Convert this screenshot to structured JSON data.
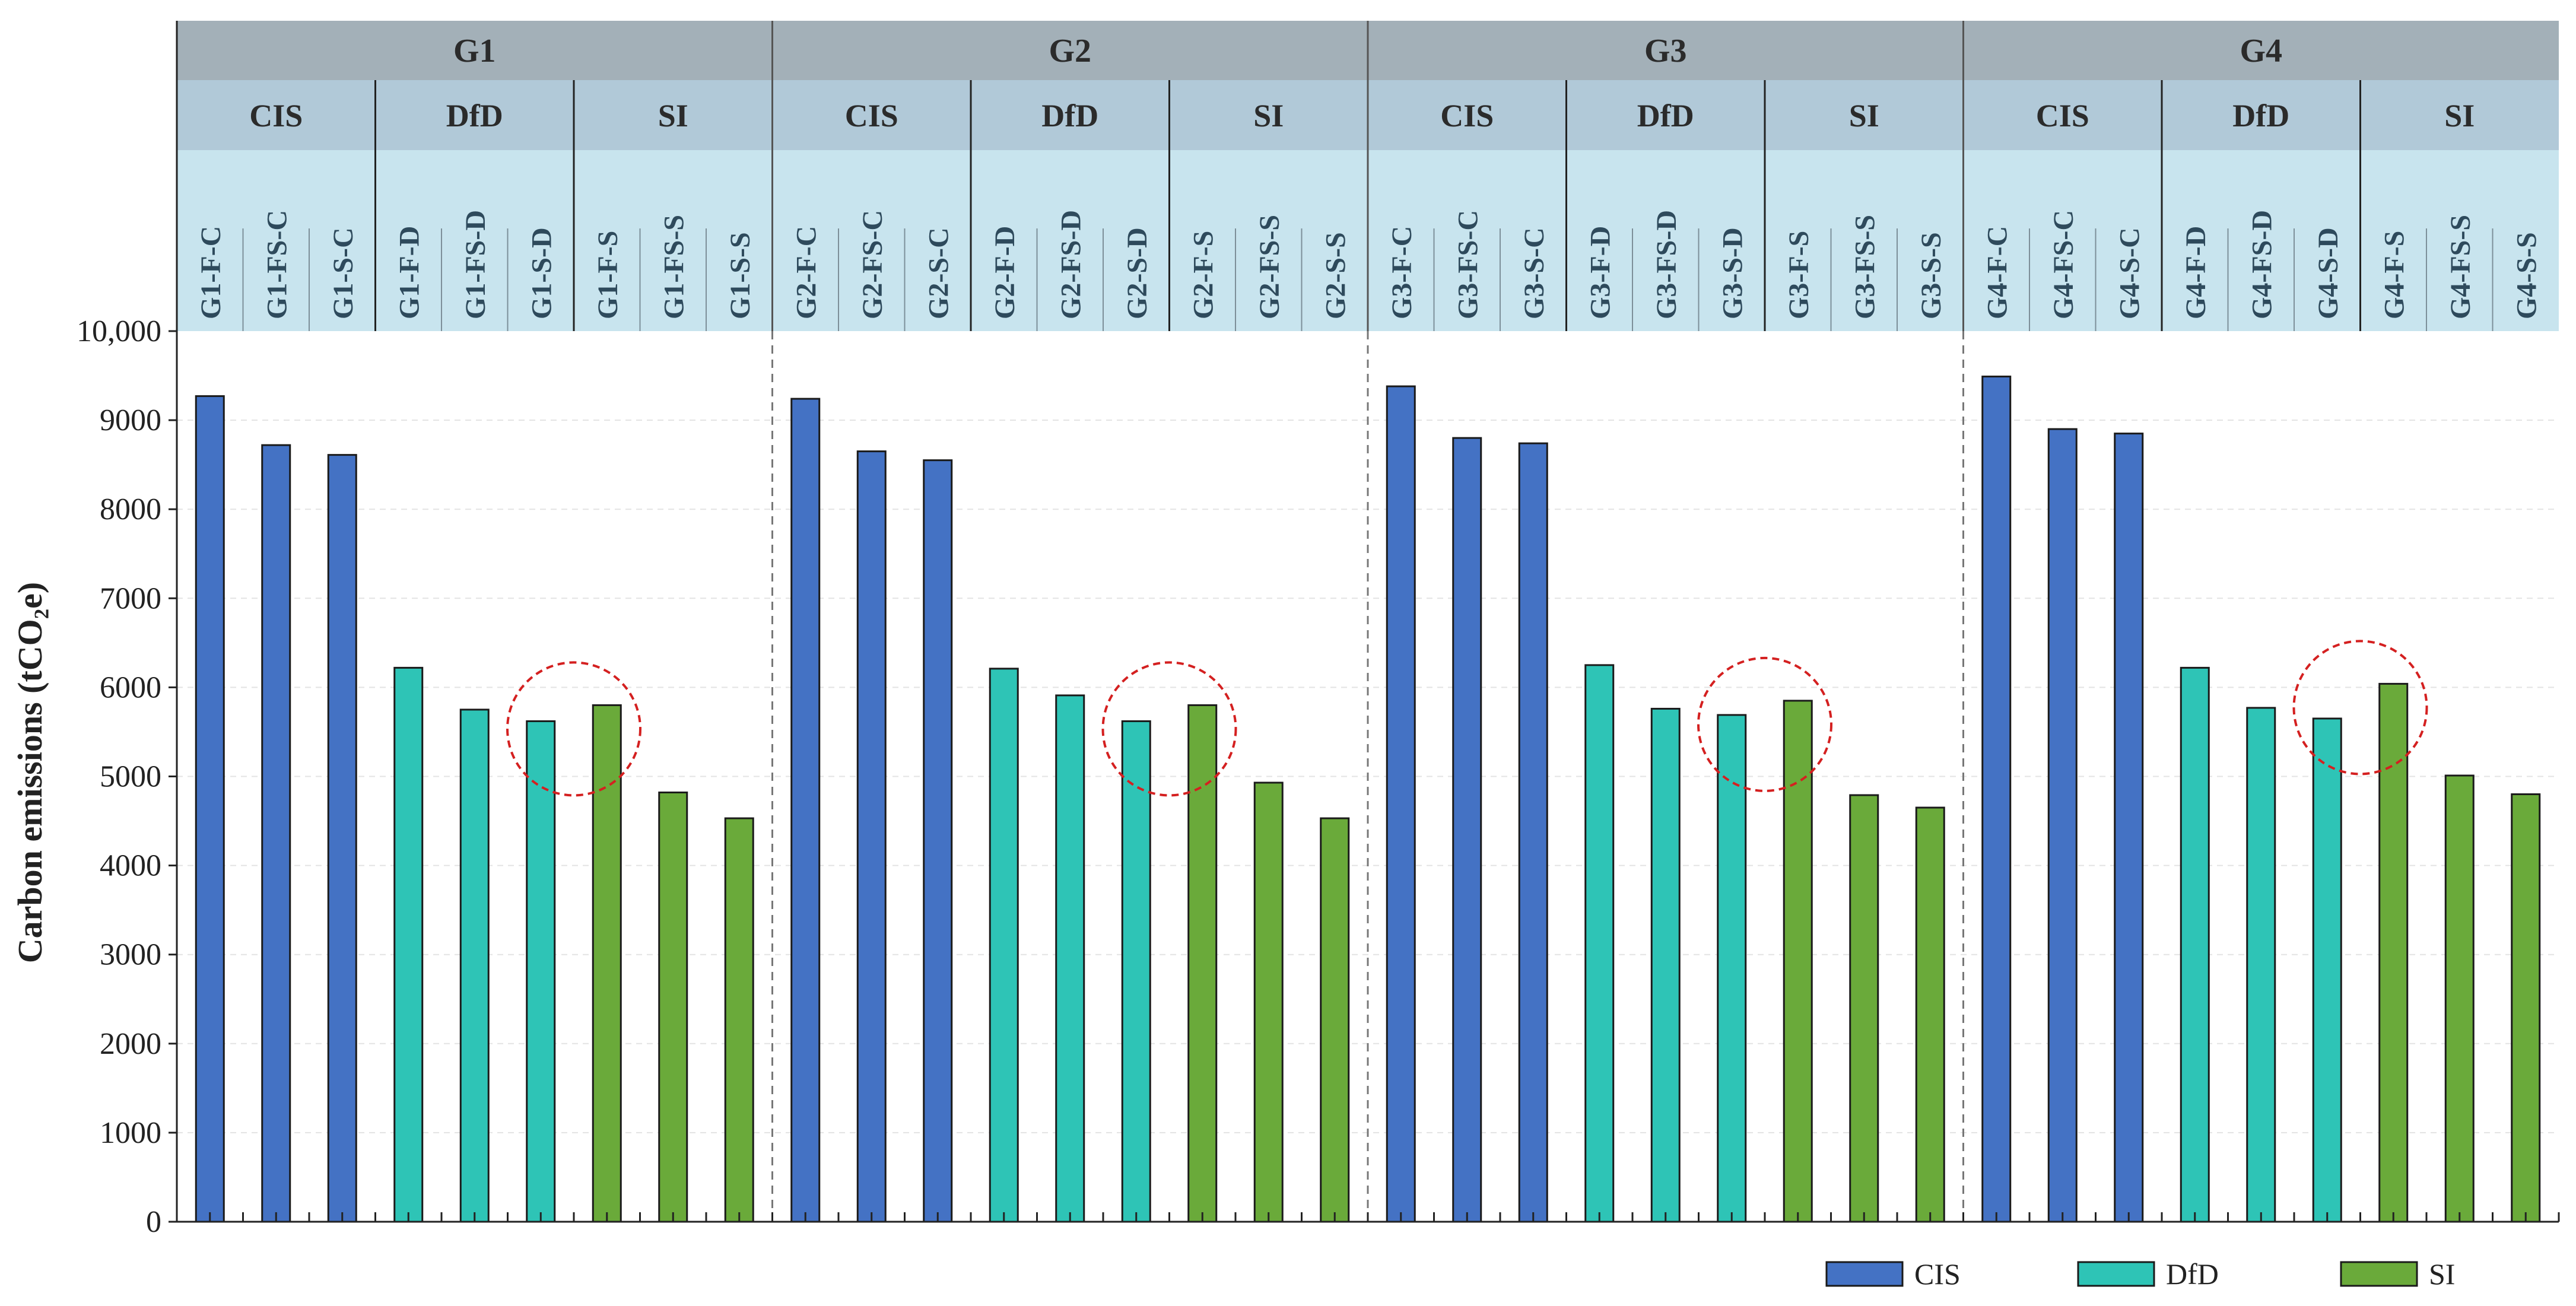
{
  "chart_data": {
    "type": "bar",
    "ylabel": "Carbon emissions  (tCO₂e)",
    "ylim": [
      0,
      10000
    ],
    "yticks": [
      0,
      1000,
      2000,
      3000,
      4000,
      5000,
      6000,
      7000,
      8000,
      9000,
      10000
    ],
    "ytick_labels": [
      "0",
      "1000",
      "2000",
      "3000",
      "4000",
      "5000",
      "6000",
      "7000",
      "8000",
      "9000",
      "10,000"
    ],
    "grid": true,
    "legend_position": "bottom-right",
    "groups": [
      "G1",
      "G2",
      "G3",
      "G4"
    ],
    "types": [
      "CIS",
      "DfD",
      "SI"
    ],
    "categories": [
      "G1-F-C",
      "G1-FS-C",
      "G1-S-C",
      "G1-F-D",
      "G1-FS-D",
      "G1-S-D",
      "G1-F-S",
      "G1-FS-S",
      "G1-S-S",
      "G2-F-C",
      "G2-FS-C",
      "G2-S-C",
      "G2-F-D",
      "G2-FS-D",
      "G2-S-D",
      "G2-F-S",
      "G2-FS-S",
      "G2-S-S",
      "G3-F-C",
      "G3-FS-C",
      "G3-S-C",
      "G3-F-D",
      "G3-FS-D",
      "G3-S-D",
      "G3-F-S",
      "G3-FS-S",
      "G3-S-S",
      "G4-F-C",
      "G4-FS-C",
      "G4-S-C",
      "G4-F-D",
      "G4-FS-D",
      "G4-S-D",
      "G4-F-S",
      "G4-FS-S",
      "G4-S-S"
    ],
    "values": [
      9270,
      8720,
      8610,
      6220,
      5750,
      5620,
      5800,
      4820,
      4530,
      9240,
      8650,
      8550,
      6210,
      5910,
      5620,
      5800,
      4930,
      4530,
      9380,
      8800,
      8740,
      6250,
      5760,
      5690,
      5850,
      4790,
      4650,
      9490,
      8900,
      8850,
      6220,
      5770,
      5650,
      6040,
      5010,
      4800
    ],
    "series_type": [
      "CIS",
      "CIS",
      "CIS",
      "DfD",
      "DfD",
      "DfD",
      "SI",
      "SI",
      "SI",
      "CIS",
      "CIS",
      "CIS",
      "DfD",
      "DfD",
      "DfD",
      "SI",
      "SI",
      "SI",
      "CIS",
      "CIS",
      "CIS",
      "DfD",
      "DfD",
      "DfD",
      "SI",
      "SI",
      "SI",
      "CIS",
      "CIS",
      "CIS",
      "DfD",
      "DfD",
      "DfD",
      "SI",
      "SI",
      "SI"
    ],
    "legend": [
      {
        "name": "CIS",
        "color": "#4472c4"
      },
      {
        "name": "DfD",
        "color": "#2ec4b6"
      },
      {
        "name": "SI",
        "color": "#6aaa3a"
      }
    ],
    "highlight_circles": [
      {
        "group": "G1",
        "between": [
          "G1-S-D",
          "G1-F-S"
        ]
      },
      {
        "group": "G2",
        "between": [
          "G2-S-D",
          "G2-F-S"
        ]
      },
      {
        "group": "G3",
        "between": [
          "G3-S-D",
          "G3-F-S"
        ]
      },
      {
        "group": "G4",
        "between": [
          "G4-S-D",
          "G4-F-S"
        ]
      }
    ],
    "colors": {
      "group_header": "#a3b0b8",
      "type_header": "#b1c9d8",
      "cat_header": "#c8e4ee",
      "highlight": "#d42020"
    }
  }
}
